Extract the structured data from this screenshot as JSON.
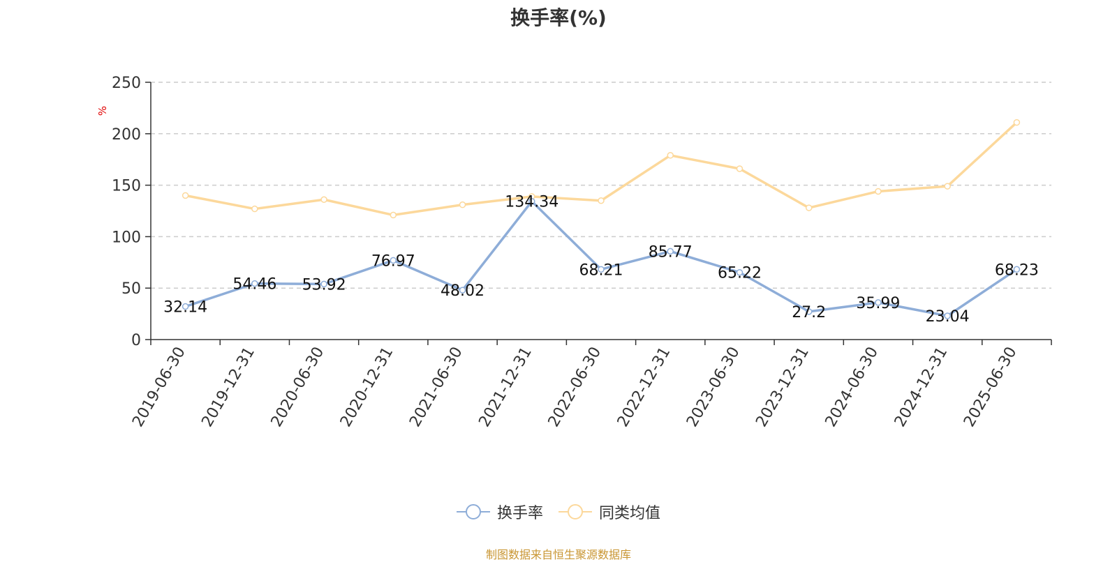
{
  "title": "换手率(%)",
  "unit_label": "%",
  "source": "制图数据来自恒生聚源数据库",
  "colors": {
    "turnover": "#8eadd8",
    "average": "#fcd89b",
    "grid": "#cccccc",
    "axis": "#333333"
  },
  "chart_data": {
    "type": "line",
    "categories": [
      "2019-06-30",
      "2019-12-31",
      "2020-06-30",
      "2020-12-31",
      "2021-06-30",
      "2021-12-31",
      "2022-06-30",
      "2022-12-31",
      "2023-06-30",
      "2023-12-31",
      "2024-06-30",
      "2024-12-31",
      "2025-06-30"
    ],
    "ylim": [
      0,
      250
    ],
    "yticks": [
      0,
      50,
      100,
      150,
      200,
      250
    ],
    "grid": true,
    "legend_position": "bottom",
    "series": [
      {
        "name": "换手率",
        "color": "#8eadd8",
        "show_labels": true,
        "values": [
          32.14,
          54.46,
          53.92,
          76.97,
          48.02,
          134.34,
          68.21,
          85.77,
          65.22,
          27.2,
          35.99,
          23.04,
          68.23
        ]
      },
      {
        "name": "同类均值",
        "color": "#fcd89b",
        "show_labels": false,
        "values": [
          140,
          127,
          136,
          121,
          131,
          139,
          135,
          179,
          166,
          128,
          144,
          149,
          211
        ]
      }
    ]
  }
}
